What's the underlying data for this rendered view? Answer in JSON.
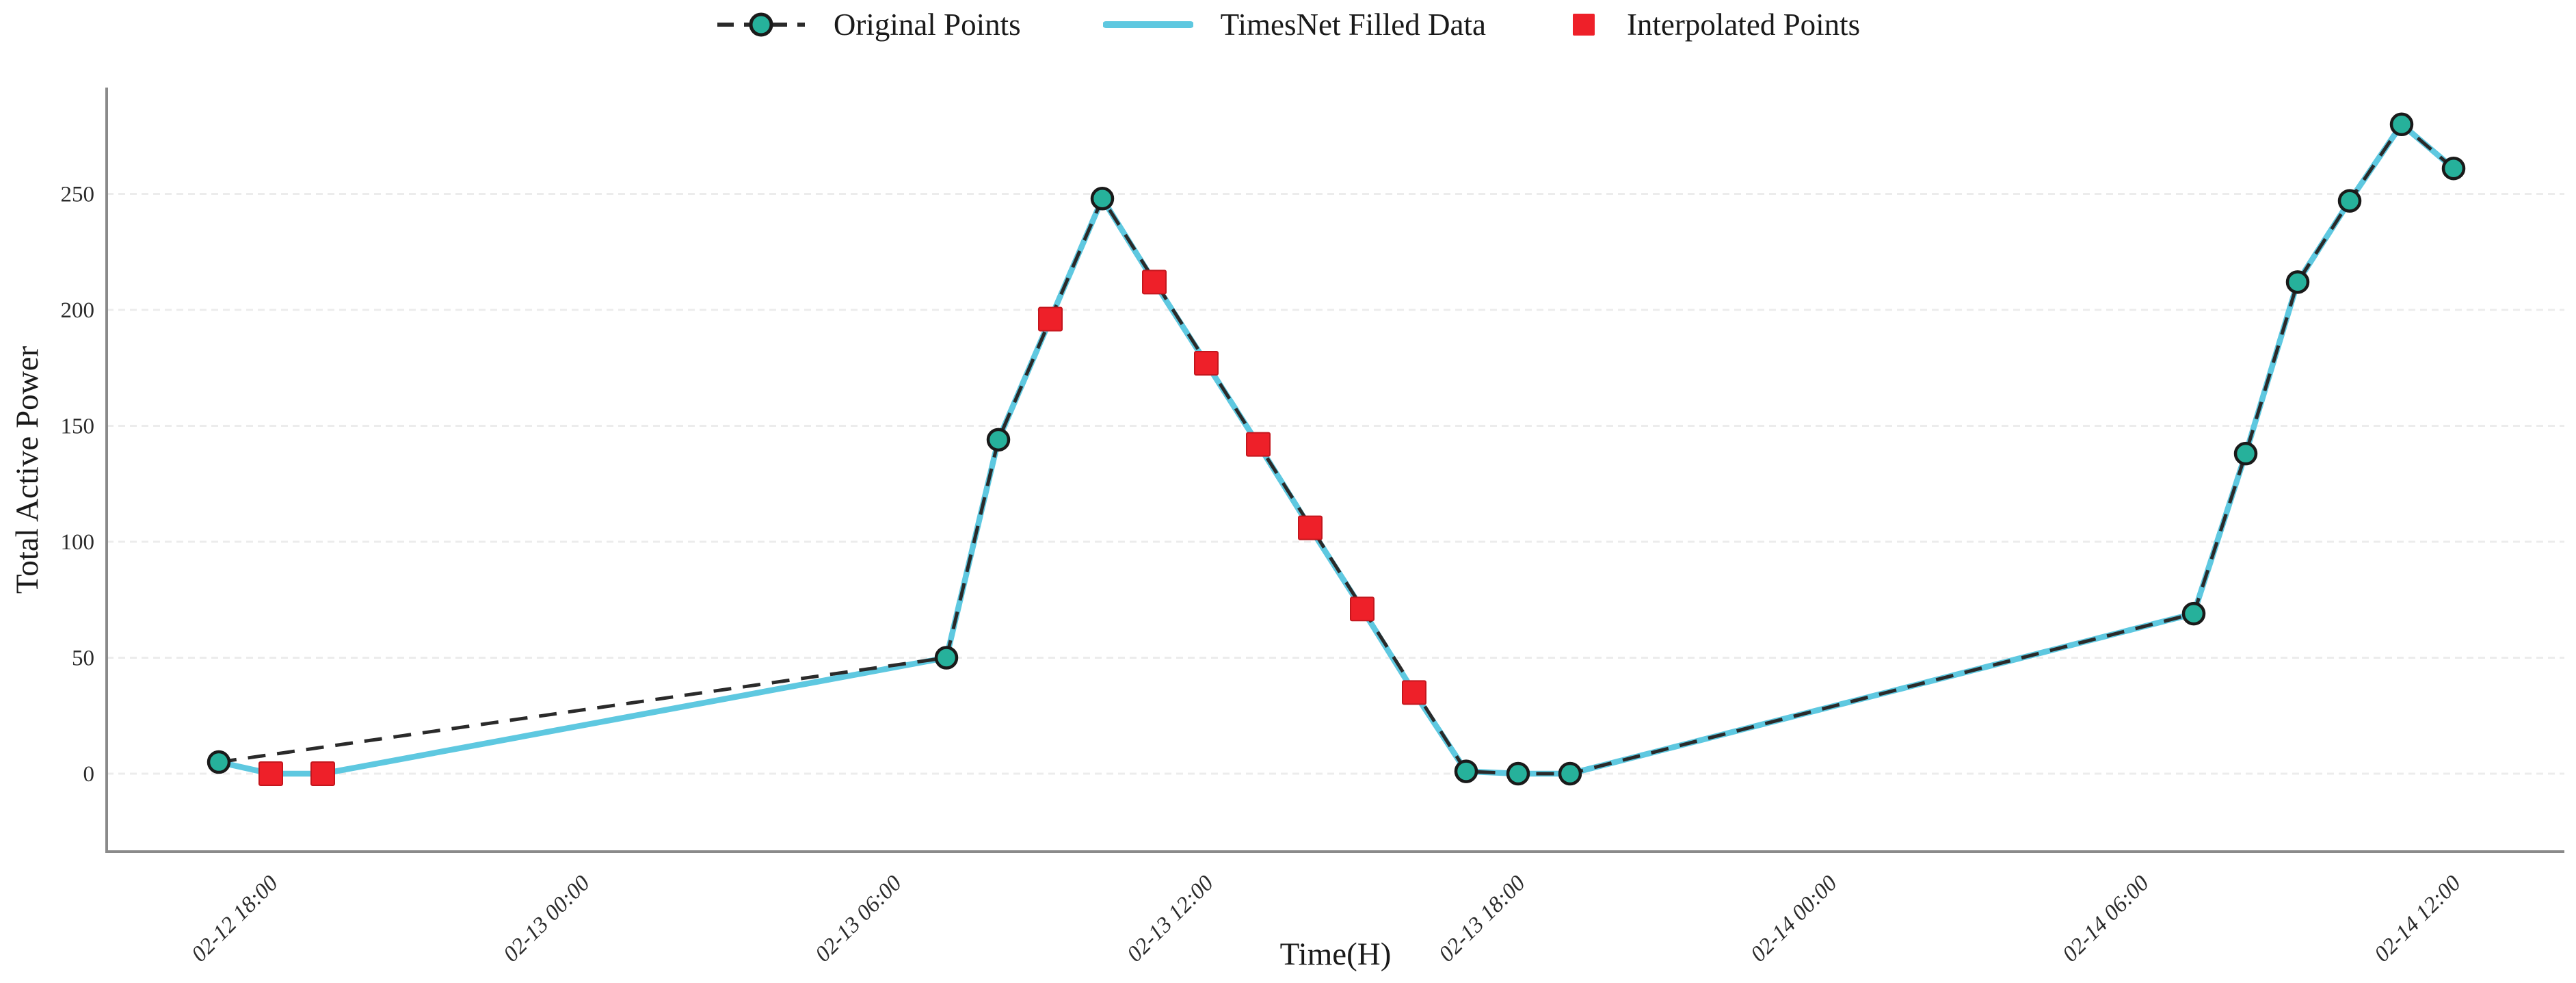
{
  "chart_data": {
    "type": "line",
    "title": "",
    "xlabel": "Time(H)",
    "ylabel": "Total Active Power",
    "x_ticks": [
      "02-12 18:00",
      "02-13 00:00",
      "02-13 06:00",
      "02-13 12:00",
      "02-13 18:00",
      "02-14 00:00",
      "02-14 06:00",
      "02-14 12:00"
    ],
    "y_ticks": [
      0,
      50,
      100,
      150,
      200,
      250
    ],
    "ylim": [
      -15,
      295
    ],
    "grid": "horizontal dashed",
    "legend_position": "top center",
    "colors": {
      "original_line": "#2a2a2a",
      "original_marker_fill": "#26b19b",
      "original_marker_edge": "#1a1a1a",
      "filled_line": "#5ec8e0",
      "interpolated_fill": "#ee2029",
      "interpolated_edge": "#c4161d",
      "grid_line": "#ececec",
      "spine": "#8a8a8a",
      "tick_text": "#2b2b2b",
      "label_text": "#1a1a1a"
    },
    "series": [
      {
        "name": "Original Points",
        "style": "dashed line with circle markers",
        "points": [
          {
            "time": "02-12 17:00",
            "value": 5
          },
          {
            "time": "02-13 07:00",
            "value": 50
          },
          {
            "time": "02-13 08:00",
            "value": 144
          },
          {
            "time": "02-13 10:00",
            "value": 248
          },
          {
            "time": "02-13 17:00",
            "value": 1
          },
          {
            "time": "02-13 18:00",
            "value": 0
          },
          {
            "time": "02-13 19:00",
            "value": 0
          },
          {
            "time": "02-14 07:00",
            "value": 69
          },
          {
            "time": "02-14 08:00",
            "value": 138
          },
          {
            "time": "02-14 09:00",
            "value": 212
          },
          {
            "time": "02-14 10:00",
            "value": 247
          },
          {
            "time": "02-14 11:00",
            "value": 280
          },
          {
            "time": "02-14 12:00",
            "value": 261
          }
        ]
      },
      {
        "name": "TimesNet Filled Data",
        "style": "solid line through all filled points",
        "points": [
          {
            "time": "02-12 17:00",
            "value": 5
          },
          {
            "time": "02-12 18:00",
            "value": 0
          },
          {
            "time": "02-12 19:00",
            "value": 0
          },
          {
            "time": "02-13 07:00",
            "value": 50
          },
          {
            "time": "02-13 08:00",
            "value": 144
          },
          {
            "time": "02-13 09:00",
            "value": 196
          },
          {
            "time": "02-13 10:00",
            "value": 248
          },
          {
            "time": "02-13 11:00",
            "value": 212
          },
          {
            "time": "02-13 12:00",
            "value": 177
          },
          {
            "time": "02-13 13:00",
            "value": 142
          },
          {
            "time": "02-13 14:00",
            "value": 106
          },
          {
            "time": "02-13 15:00",
            "value": 71
          },
          {
            "time": "02-13 16:00",
            "value": 35
          },
          {
            "time": "02-13 17:00",
            "value": 1
          },
          {
            "time": "02-13 18:00",
            "value": 0
          },
          {
            "time": "02-13 19:00",
            "value": 0
          },
          {
            "time": "02-14 07:00",
            "value": 69
          },
          {
            "time": "02-14 08:00",
            "value": 138
          },
          {
            "time": "02-14 09:00",
            "value": 212
          },
          {
            "time": "02-14 10:00",
            "value": 247
          },
          {
            "time": "02-14 11:00",
            "value": 280
          },
          {
            "time": "02-14 12:00",
            "value": 261
          }
        ]
      },
      {
        "name": "Interpolated Points",
        "style": "square markers only",
        "points": [
          {
            "time": "02-12 18:00",
            "value": 0
          },
          {
            "time": "02-12 19:00",
            "value": 0
          },
          {
            "time": "02-13 09:00",
            "value": 196
          },
          {
            "time": "02-13 11:00",
            "value": 212
          },
          {
            "time": "02-13 12:00",
            "value": 177
          },
          {
            "time": "02-13 13:00",
            "value": 142
          },
          {
            "time": "02-13 14:00",
            "value": 106
          },
          {
            "time": "02-13 15:00",
            "value": 71
          },
          {
            "time": "02-13 16:00",
            "value": 35
          }
        ]
      }
    ]
  }
}
